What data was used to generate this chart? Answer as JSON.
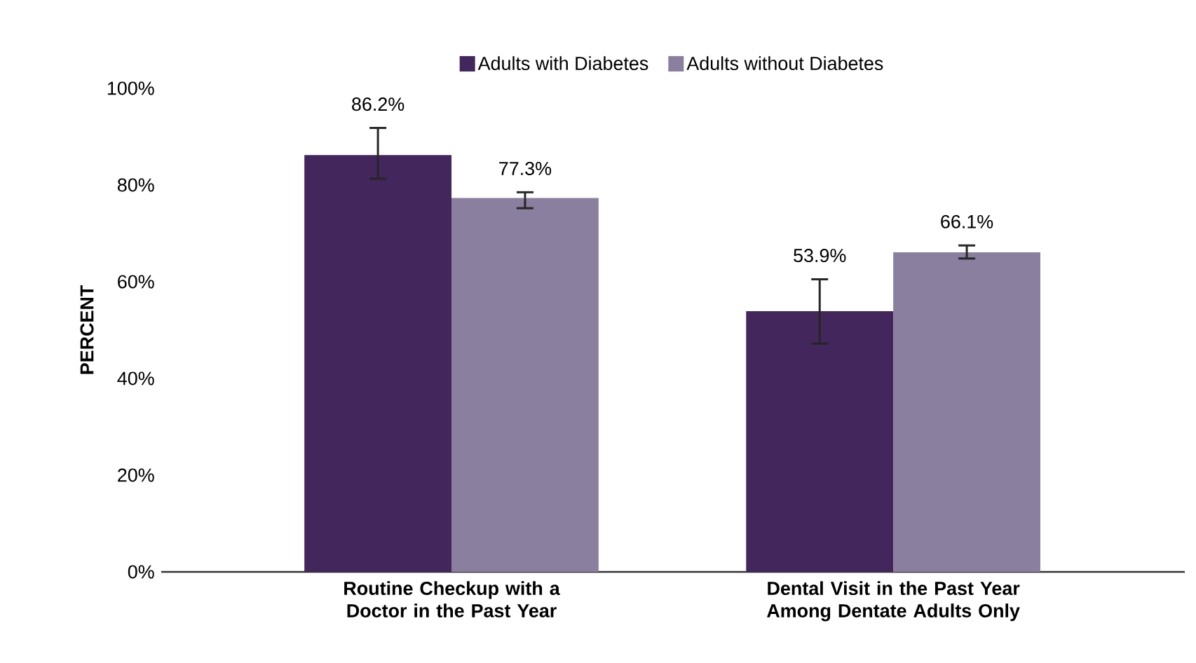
{
  "chart_data": {
    "type": "bar",
    "ylabel": "PERCENT",
    "categories": [
      "Routine Checkup with a Doctor in the Past Year",
      "Dental Visit in the Past Year Among Dentate Adults Only"
    ],
    "series": [
      {
        "name": "Adults with Diabetes",
        "color": "#42265c",
        "values": [
          86.2,
          53.9
        ],
        "value_labels": [
          "86.2%",
          "53.9%"
        ],
        "errors": [
          [
            81.3,
            91.8
          ],
          [
            47.2,
            60.5
          ]
        ]
      },
      {
        "name": "Adults without Diabetes",
        "color": "#8a7f9e",
        "values": [
          77.3,
          66.1
        ],
        "value_labels": [
          "77.3%",
          "66.1%"
        ],
        "errors": [
          [
            75.2,
            78.5
          ],
          [
            64.8,
            67.5
          ]
        ]
      }
    ],
    "ylim": [
      0,
      100
    ],
    "yticks": [
      {
        "value": 0,
        "label": "0%"
      },
      {
        "value": 20,
        "label": "20%"
      },
      {
        "value": 40,
        "label": "40%"
      },
      {
        "value": 60,
        "label": "60%"
      },
      {
        "value": 80,
        "label": "80%"
      },
      {
        "value": 100,
        "label": "100%"
      }
    ],
    "legend": "top",
    "grid": false
  }
}
